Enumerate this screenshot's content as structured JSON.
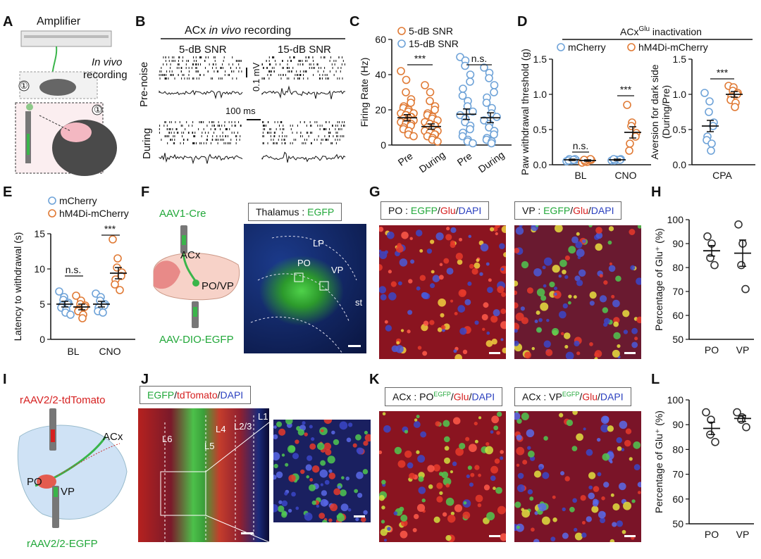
{
  "panels": {
    "A": "A",
    "B": "B",
    "C": "C",
    "D": "D",
    "E": "E",
    "F": "F",
    "G": "G",
    "H": "H",
    "I": "I",
    "J": "J",
    "K": "K",
    "L": "L"
  },
  "panelA": {
    "amplifier": "Amplifier",
    "invivo_1": "In vivo",
    "invivo_2": "recording",
    "circle_num": "①",
    "inset_num": "①"
  },
  "panelB": {
    "title_pre": "ACx ",
    "title_em": "in vivo",
    "title_post": " recording",
    "col1": "5-dB SNR",
    "col2": "15-dB SNR",
    "row1": "Pre-noise",
    "row2": "During",
    "scale_mv": "0.1 mV",
    "scale_ms": "100 ms"
  },
  "panelF": {
    "aav1": "AAV1-Cre",
    "acx": "ACx",
    "povp": "PO/VP",
    "aavdio": "AAV-DIO-EGFP",
    "micro_prefix": "Thalamus : ",
    "micro_egfp": "EGFP",
    "lp": "LP",
    "po": "PO",
    "vp": "VP",
    "st": "st"
  },
  "panelG": {
    "left_prefix": "PO : ",
    "right_prefix": "VP : ",
    "egfp": "EGFP",
    "slash": "/",
    "glu": "Glu",
    "dapi": "DAPI"
  },
  "panelI": {
    "tdtomato": "rAAV2/2-tdTomato",
    "acx": "ACx",
    "po": "PO",
    "vp": "VP",
    "egfp": "rAAV2/2-EGFP"
  },
  "panelJ": {
    "egfp": "EGFP",
    "tdtomato": "tdTomato",
    "dapi": "DAPI",
    "slash": "/",
    "l1": "L1",
    "l23": "L2/3",
    "l4": "L4",
    "l5": "L5",
    "l6": "L6"
  },
  "panelK": {
    "prefix": "ACx : ",
    "po": "PO",
    "vp": "VP",
    "sup": "EGFP",
    "glu": "Glu",
    "dapi": "DAPI",
    "slash": "/"
  },
  "chart_data": [
    {
      "id": "C",
      "type": "scatter",
      "ylabel": "Firing Rate (Hz)",
      "ylim": [
        0,
        60
      ],
      "yticks": [
        "0",
        "20",
        "40",
        "60"
      ],
      "legend": [
        {
          "name": "5-dB SNR",
          "color": "#e07a35"
        },
        {
          "name": "15-dB SNR",
          "color": "#6fa3d8"
        }
      ],
      "categories": [
        "Pre",
        "During",
        "Pre",
        "During"
      ],
      "groups": [
        {
          "condition": "5-dB SNR",
          "cat": "Pre",
          "color": "#e07a35",
          "mean": 15.5,
          "sem": 1.8,
          "values": [
            42,
            37,
            30,
            26,
            24,
            22,
            21,
            20,
            19,
            18,
            18,
            17,
            17,
            16,
            16,
            15,
            15,
            15,
            14,
            14,
            13,
            13,
            12,
            12,
            11,
            10,
            9,
            8,
            6,
            5
          ]
        },
        {
          "condition": "5-dB SNR",
          "cat": "During",
          "color": "#e07a35",
          "mean": 10.5,
          "sem": 1.5,
          "values": [
            34,
            30,
            25,
            22,
            20,
            18,
            17,
            16,
            15,
            14,
            13,
            12,
            12,
            11,
            11,
            10,
            10,
            9,
            9,
            8,
            8,
            7,
            7,
            6,
            6,
            5,
            5,
            4,
            3,
            2
          ]
        },
        {
          "condition": "15-dB SNR",
          "cat": "Pre",
          "color": "#6fa3d8",
          "mean": 17.5,
          "sem": 3.0,
          "values": [
            50,
            48,
            45,
            40,
            36,
            32,
            28,
            25,
            22,
            19,
            17,
            15,
            13,
            11,
            9,
            7,
            5,
            3,
            2,
            1
          ]
        },
        {
          "condition": "15-dB SNR",
          "cat": "During",
          "color": "#6fa3d8",
          "mean": 15.5,
          "sem": 2.8,
          "values": [
            44,
            41,
            38,
            34,
            30,
            27,
            24,
            21,
            18,
            16,
            14,
            12,
            10,
            8,
            6,
            4,
            3,
            2,
            1
          ]
        }
      ],
      "annotations": [
        "***",
        "n.s."
      ]
    },
    {
      "id": "D-left",
      "type": "scatter",
      "title_pre": "ACx",
      "title_sup": "Glu",
      "title_post": " inactivation",
      "ylabel": "Paw withdrawal threshold (g)",
      "ylim": [
        0,
        1.5
      ],
      "yticks": [
        "0.0",
        "0.5",
        "1.0",
        "1.5"
      ],
      "legend": [
        {
          "name": "mCherry",
          "color": "#6fa3d8"
        },
        {
          "name": "hM4Di-mCherry",
          "color": "#e07a35"
        }
      ],
      "categories": [
        "BL",
        "CNO"
      ],
      "groups": [
        {
          "condition": "mCherry",
          "cat": "BL",
          "color": "#6fa3d8",
          "mean": 0.07,
          "sem": 0.01,
          "values": [
            0.05,
            0.06,
            0.07,
            0.07,
            0.08,
            0.08,
            0.06,
            0.07
          ]
        },
        {
          "condition": "hM4Di-mCherry",
          "cat": "BL",
          "color": "#e07a35",
          "mean": 0.06,
          "sem": 0.01,
          "values": [
            0.03,
            0.04,
            0.06,
            0.07,
            0.08,
            0.05,
            0.07
          ]
        },
        {
          "condition": "mCherry",
          "cat": "CNO",
          "color": "#6fa3d8",
          "mean": 0.07,
          "sem": 0.01,
          "values": [
            0.06,
            0.07,
            0.07,
            0.08,
            0.07,
            0.06,
            0.08
          ]
        },
        {
          "condition": "hM4Di-mCherry",
          "cat": "CNO",
          "color": "#e07a35",
          "mean": 0.46,
          "sem": 0.08,
          "values": [
            0.85,
            0.6,
            0.55,
            0.45,
            0.4,
            0.3,
            0.2
          ]
        }
      ],
      "annotations": [
        "n.s.",
        "***"
      ]
    },
    {
      "id": "D-right",
      "type": "scatter",
      "ylabel": "Aversion for dark side (During/Pre)",
      "ylim": [
        0,
        1.5
      ],
      "yticks": [
        "0.0",
        "0.5",
        "1.0",
        "1.5"
      ],
      "categories": [
        "CPA"
      ],
      "groups": [
        {
          "condition": "mCherry",
          "cat": "CPA",
          "color": "#6fa3d8",
          "mean": 0.55,
          "sem": 0.08,
          "values": [
            1.02,
            0.9,
            0.75,
            0.6,
            0.55,
            0.4,
            0.35,
            0.3,
            0.2
          ]
        },
        {
          "condition": "hM4Di-mCherry",
          "cat": "CPA",
          "color": "#e07a35",
          "mean": 1.0,
          "sem": 0.04,
          "values": [
            1.12,
            1.1,
            1.05,
            1.02,
            1.0,
            0.97,
            0.92,
            0.88,
            0.82
          ]
        }
      ],
      "annotations": [
        "***"
      ]
    },
    {
      "id": "E",
      "type": "scatter",
      "ylabel": "Latency to withdrawal (s)",
      "ylim": [
        0,
        15
      ],
      "yticks": [
        "0",
        "5",
        "10",
        "15"
      ],
      "legend": [
        {
          "name": "mCherry",
          "color": "#6fa3d8"
        },
        {
          "name": "hM4Di-mCherry",
          "color": "#e07a35"
        }
      ],
      "categories": [
        "BL",
        "CNO"
      ],
      "groups": [
        {
          "condition": "mCherry",
          "cat": "BL",
          "color": "#6fa3d8",
          "mean": 5.0,
          "sem": 0.4,
          "values": [
            6.8,
            6.0,
            5.6,
            5.2,
            5.0,
            4.8,
            4.5,
            4.2,
            3.8,
            3.5
          ]
        },
        {
          "condition": "hM4Di-mCherry",
          "cat": "BL",
          "color": "#e07a35",
          "mean": 4.6,
          "sem": 0.4,
          "values": [
            6.2,
            5.5,
            5.0,
            4.8,
            4.6,
            4.3,
            4.0,
            3.5,
            3.0
          ]
        },
        {
          "condition": "mCherry",
          "cat": "CNO",
          "color": "#6fa3d8",
          "mean": 5.0,
          "sem": 0.4,
          "values": [
            6.5,
            6.0,
            5.5,
            5.0,
            4.8,
            4.5,
            4.0,
            3.8
          ]
        },
        {
          "condition": "hM4Di-mCherry",
          "cat": "CNO",
          "color": "#e07a35",
          "mean": 9.4,
          "sem": 0.8,
          "values": [
            14.2,
            11.5,
            10.2,
            9.5,
            9.0,
            8.5,
            7.8,
            7.0
          ]
        }
      ],
      "annotations": [
        "n.s.",
        "***"
      ]
    },
    {
      "id": "H",
      "type": "scatter",
      "ylabel": "Percentage of Glu⁺ (%)",
      "ylim": [
        50,
        100
      ],
      "yticks": [
        "50",
        "60",
        "70",
        "80",
        "90",
        "100"
      ],
      "categories": [
        "PO",
        "VP"
      ],
      "groups": [
        {
          "cat": "PO",
          "color": "#333333",
          "mean": 87,
          "sem": 2.2,
          "values": [
            93,
            90,
            84,
            81
          ]
        },
        {
          "cat": "VP",
          "color": "#333333",
          "mean": 86,
          "sem": 5.5,
          "values": [
            98,
            90,
            81,
            71
          ]
        }
      ]
    },
    {
      "id": "L",
      "type": "scatter",
      "ylabel": "Percentage of Glu⁺ (%)",
      "ylim": [
        50,
        100
      ],
      "yticks": [
        "50",
        "60",
        "70",
        "80",
        "90",
        "100"
      ],
      "categories": [
        "PO",
        "VP"
      ],
      "groups": [
        {
          "cat": "PO",
          "color": "#333333",
          "mean": 88.5,
          "sem": 2.5,
          "values": [
            95,
            92,
            86,
            83
          ]
        },
        {
          "cat": "VP",
          "color": "#333333",
          "mean": 92.5,
          "sem": 1.2,
          "values": [
            95,
            93,
            92,
            89
          ]
        }
      ]
    }
  ]
}
